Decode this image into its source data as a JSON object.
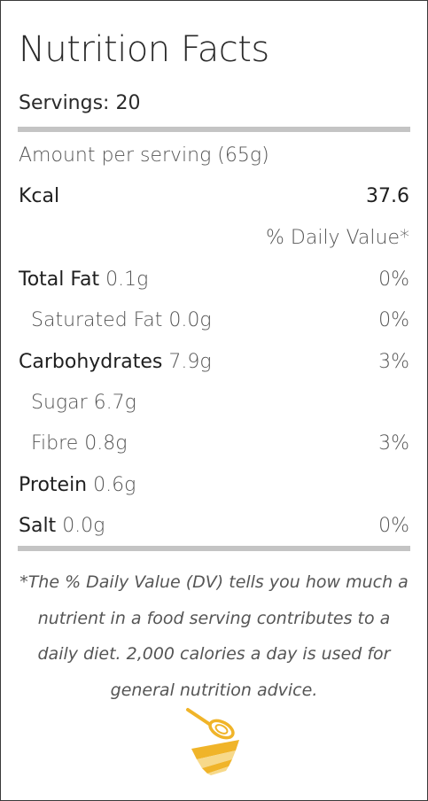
{
  "label": {
    "title": "Nutrition Facts",
    "servings": "Servings: 20",
    "amount_per_serving": "Amount per serving (65g)",
    "calories": {
      "label": "Kcal",
      "value": "37.6"
    },
    "daily_value_header": "% Daily Value*",
    "nutrients": [
      {
        "name": "Total Fat",
        "amount": "0.1g",
        "dv": "0%",
        "indent": false
      },
      {
        "name": "Saturated Fat",
        "amount": "0.0g",
        "dv": "0%",
        "indent": true
      },
      {
        "name": "Carbohydrates",
        "amount": "7.9g",
        "dv": "3%",
        "indent": false
      },
      {
        "name": "Sugar",
        "amount": "6.7g",
        "dv": "",
        "indent": true
      },
      {
        "name": "Fibre",
        "amount": "0.8g",
        "dv": "3%",
        "indent": true
      },
      {
        "name": "Protein",
        "amount": "0.6g",
        "dv": "",
        "indent": false
      },
      {
        "name": "Salt",
        "amount": "0.0g",
        "dv": "0%",
        "indent": false
      }
    ],
    "footnote": "*The % Daily Value (DV) tells you how much a nutrient in a food serving contributes to a daily diet. 2,000 calories a day is used for general nutrition advice.",
    "logo_icon": "whisk-bowl-icon",
    "colors": {
      "rule": "#c4c4c4",
      "logo_primary": "#f0b429",
      "logo_light": "#f7d98a"
    }
  }
}
